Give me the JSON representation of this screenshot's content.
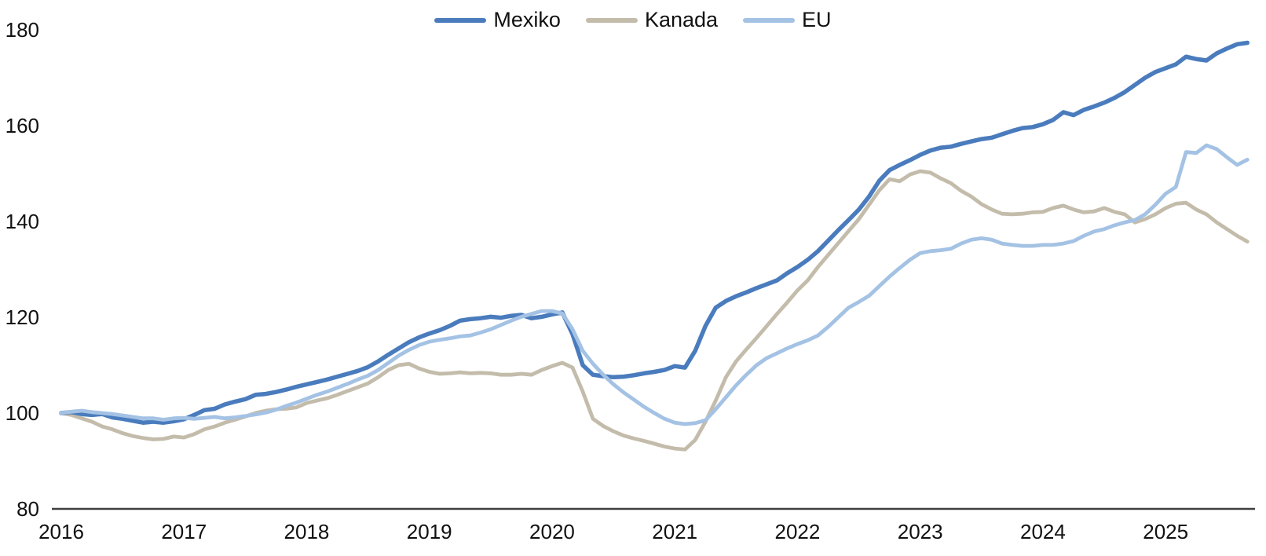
{
  "chart_data": {
    "type": "line",
    "title": "",
    "xlabel": "",
    "ylabel": "",
    "y_axis": {
      "min": 80,
      "max": 180,
      "ticks": [
        80,
        100,
        120,
        140,
        160,
        180
      ]
    },
    "x_axis": {
      "tick_labels": [
        "2016",
        "2017",
        "2018",
        "2019",
        "2020",
        "2021",
        "2022",
        "2023",
        "2024",
        "2025"
      ],
      "start": "2016-01",
      "end": "2025-09",
      "frequency": "monthly"
    },
    "grid": "off",
    "legend_position": "top-center",
    "axis_line_color": "#3f3f3f",
    "text_color": "#111111",
    "draw_order": [
      "Kanada",
      "Mexiko",
      "EU"
    ],
    "series": [
      {
        "name": "Mexiko",
        "color": "#4a7cbd",
        "stroke_width": 5.5,
        "values": [
          100.0,
          100.2,
          99.8,
          99.6,
          99.8,
          99.1,
          98.8,
          98.4,
          98.0,
          98.2,
          98.0,
          98.3,
          98.7,
          99.6,
          100.6,
          100.9,
          101.8,
          102.4,
          102.9,
          103.8,
          104.0,
          104.4,
          104.9,
          105.5,
          106.0,
          106.5,
          107.0,
          107.6,
          108.2,
          108.8,
          109.6,
          110.8,
          112.2,
          113.5,
          114.8,
          115.8,
          116.6,
          117.3,
          118.2,
          119.3,
          119.6,
          119.8,
          120.1,
          119.9,
          120.3,
          120.5,
          119.8,
          120.1,
          120.6,
          121.0,
          116.5,
          110.0,
          108.0,
          107.7,
          107.5,
          107.6,
          107.9,
          108.3,
          108.6,
          109.0,
          109.8,
          109.5,
          113.0,
          118.2,
          122.0,
          123.4,
          124.4,
          125.2,
          126.1,
          126.9,
          127.7,
          129.2,
          130.5,
          132.0,
          133.8,
          136.0,
          138.2,
          140.3,
          142.5,
          145.2,
          148.5,
          150.7,
          151.8,
          152.8,
          153.9,
          154.8,
          155.4,
          155.6,
          156.2,
          156.7,
          157.2,
          157.5,
          158.2,
          158.9,
          159.5,
          159.7,
          160.3,
          161.2,
          162.8,
          162.2,
          163.3,
          164.0,
          164.8,
          165.8,
          167.0,
          168.5,
          170.0,
          171.2,
          172.0,
          172.8,
          174.4,
          173.9,
          173.6,
          175.1,
          176.1,
          177.0,
          177.3
        ]
      },
      {
        "name": "Kanada",
        "color": "#c4bcab",
        "stroke_width": 4.8,
        "values": [
          100.0,
          99.6,
          98.9,
          98.2,
          97.2,
          96.6,
          95.8,
          95.2,
          94.8,
          94.5,
          94.6,
          95.1,
          94.9,
          95.6,
          96.6,
          97.2,
          98.0,
          98.6,
          99.3,
          100.0,
          100.5,
          100.8,
          100.9,
          101.2,
          102.1,
          102.6,
          103.1,
          103.8,
          104.6,
          105.4,
          106.2,
          107.5,
          109.0,
          110.0,
          110.3,
          109.3,
          108.6,
          108.2,
          108.3,
          108.5,
          108.3,
          108.4,
          108.3,
          108.0,
          108.0,
          108.2,
          108.0,
          109.0,
          109.8,
          110.5,
          109.5,
          104.5,
          98.8,
          97.3,
          96.2,
          95.3,
          94.7,
          94.2,
          93.6,
          93.0,
          92.6,
          92.4,
          94.4,
          98.2,
          102.6,
          107.5,
          110.8,
          113.3,
          115.7,
          118.2,
          120.7,
          123.1,
          125.6,
          127.7,
          130.5,
          133.0,
          135.5,
          138.0,
          140.5,
          143.5,
          146.5,
          148.8,
          148.4,
          149.8,
          150.5,
          150.2,
          149.0,
          148.0,
          146.4,
          145.2,
          143.6,
          142.5,
          141.6,
          141.5,
          141.6,
          141.9,
          142.0,
          142.8,
          143.3,
          142.5,
          141.9,
          142.1,
          142.8,
          142.0,
          141.5,
          139.8,
          140.5,
          141.5,
          142.8,
          143.7,
          143.9,
          142.5,
          141.5,
          139.8,
          138.4,
          137.0,
          135.8
        ]
      },
      {
        "name": "EU",
        "color": "#a4c2e4",
        "stroke_width": 4.8,
        "values": [
          100.0,
          100.3,
          100.5,
          100.2,
          100.0,
          99.8,
          99.5,
          99.2,
          98.9,
          98.9,
          98.6,
          98.9,
          99.0,
          98.8,
          99.0,
          99.2,
          98.9,
          99.1,
          99.4,
          99.7,
          100.1,
          100.7,
          101.5,
          102.2,
          103.0,
          103.8,
          104.5,
          105.3,
          106.1,
          107.0,
          107.8,
          109.0,
          110.5,
          112.0,
          113.2,
          114.2,
          114.9,
          115.3,
          115.6,
          116.0,
          116.2,
          116.8,
          117.5,
          118.4,
          119.3,
          120.1,
          120.7,
          121.3,
          121.3,
          120.8,
          117.5,
          113.0,
          110.3,
          108.0,
          106.0,
          104.3,
          102.8,
          101.3,
          100.0,
          98.8,
          98.0,
          97.7,
          97.9,
          98.5,
          100.8,
          103.3,
          105.8,
          108.0,
          110.0,
          111.5,
          112.5,
          113.5,
          114.4,
          115.2,
          116.2,
          118.0,
          120.0,
          122.0,
          123.2,
          124.5,
          126.5,
          128.5,
          130.3,
          132.0,
          133.4,
          133.8,
          134.0,
          134.3,
          135.4,
          136.2,
          136.5,
          136.2,
          135.4,
          135.1,
          134.9,
          134.9,
          135.1,
          135.1,
          135.4,
          135.9,
          137.0,
          137.9,
          138.4,
          139.2,
          139.8,
          140.3,
          141.5,
          143.5,
          145.8,
          147.2,
          154.5,
          154.3,
          155.9,
          155.1,
          153.4,
          151.8,
          152.9
        ]
      }
    ]
  }
}
